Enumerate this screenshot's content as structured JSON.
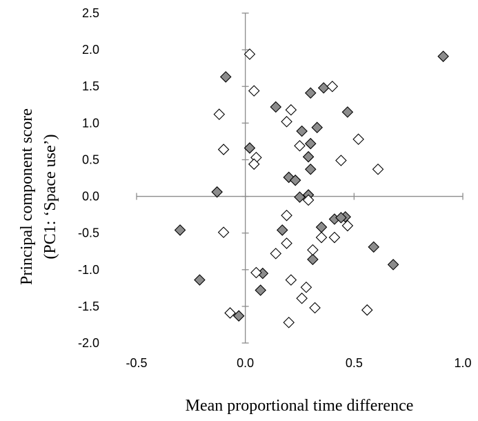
{
  "chart_data": {
    "type": "scatter",
    "title": "",
    "xlabel": "Mean proportional time difference",
    "ylabel_lines": [
      "Principal component score",
      "(PC1: ‘Space use’)"
    ],
    "xlim": [
      -0.5,
      1.0
    ],
    "ylim": [
      -2.0,
      2.5
    ],
    "x_ticks": [
      -0.5,
      0.0,
      0.5,
      1.0
    ],
    "x_tick_labels": [
      "-0.5",
      "0.0",
      "0.5",
      "1.0"
    ],
    "y_ticks": [
      2.5,
      2.0,
      1.5,
      1.0,
      0.5,
      0.0,
      -0.5,
      -1.0,
      -1.5,
      -2.0
    ],
    "y_tick_labels": [
      "2.5",
      "2.0",
      "1.5",
      "1.0",
      "0.5",
      "0.0",
      "-0.5",
      "-1.0",
      "-1.5",
      "-2.0"
    ],
    "grid": false,
    "legend": "none",
    "series": [
      {
        "marker": "diamond-filled",
        "color": "#8c8c8c",
        "points": [
          [
            0.91,
            1.91
          ],
          [
            -0.09,
            1.63
          ],
          [
            0.36,
            1.48
          ],
          [
            0.3,
            1.41
          ],
          [
            0.14,
            1.22
          ],
          [
            0.47,
            1.15
          ],
          [
            0.33,
            0.94
          ],
          [
            0.26,
            0.89
          ],
          [
            0.3,
            0.72
          ],
          [
            0.02,
            0.66
          ],
          [
            0.29,
            0.54
          ],
          [
            0.3,
            0.37
          ],
          [
            0.2,
            0.26
          ],
          [
            0.23,
            0.22
          ],
          [
            -0.13,
            0.06
          ],
          [
            0.29,
            0.02
          ],
          [
            0.25,
            -0.01
          ],
          [
            0.41,
            -0.31
          ],
          [
            0.46,
            -0.28
          ],
          [
            0.44,
            -0.29
          ],
          [
            0.35,
            -0.42
          ],
          [
            0.17,
            -0.46
          ],
          [
            -0.3,
            -0.46
          ],
          [
            0.59,
            -0.69
          ],
          [
            0.68,
            -0.93
          ],
          [
            0.31,
            -0.86
          ],
          [
            0.08,
            -1.05
          ],
          [
            -0.21,
            -1.14
          ],
          [
            0.07,
            -1.28
          ],
          [
            -0.03,
            -1.63
          ]
        ]
      },
      {
        "marker": "diamond-open",
        "color": "#ffffff",
        "points": [
          [
            0.02,
            1.94
          ],
          [
            0.4,
            1.5
          ],
          [
            0.04,
            1.44
          ],
          [
            -0.12,
            1.12
          ],
          [
            0.21,
            1.18
          ],
          [
            0.19,
            1.02
          ],
          [
            0.52,
            0.78
          ],
          [
            0.25,
            0.69
          ],
          [
            -0.1,
            0.64
          ],
          [
            0.05,
            0.53
          ],
          [
            0.04,
            0.44
          ],
          [
            0.44,
            0.49
          ],
          [
            0.61,
            0.37
          ],
          [
            0.29,
            -0.05
          ],
          [
            0.19,
            -0.26
          ],
          [
            0.47,
            -0.4
          ],
          [
            0.35,
            -0.56
          ],
          [
            0.41,
            -0.56
          ],
          [
            0.19,
            -0.64
          ],
          [
            -0.1,
            -0.49
          ],
          [
            0.31,
            -0.73
          ],
          [
            0.14,
            -0.78
          ],
          [
            0.05,
            -1.04
          ],
          [
            0.21,
            -1.14
          ],
          [
            0.28,
            -1.24
          ],
          [
            0.26,
            -1.39
          ],
          [
            0.32,
            -1.52
          ],
          [
            0.56,
            -1.55
          ],
          [
            -0.07,
            -1.59
          ],
          [
            0.2,
            -1.72
          ]
        ]
      }
    ]
  }
}
